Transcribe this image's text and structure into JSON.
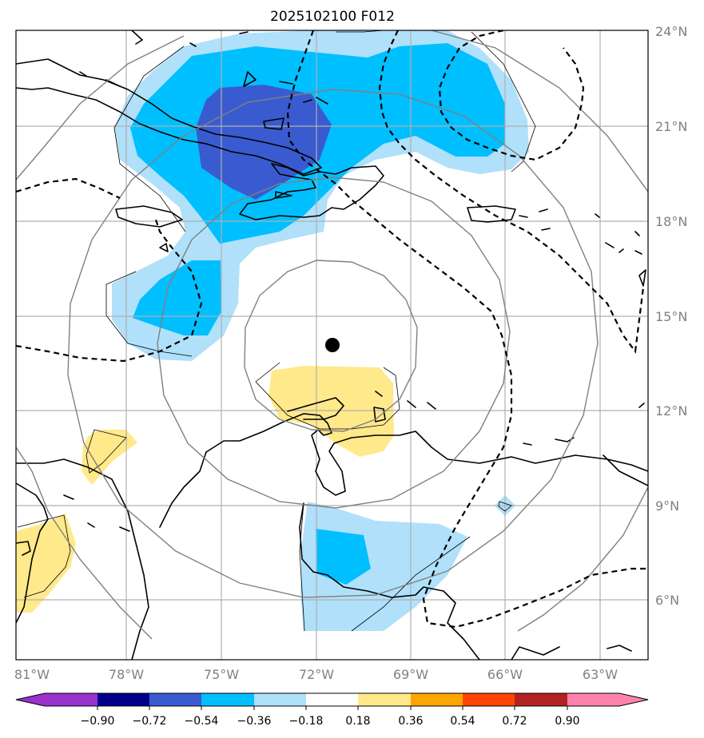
{
  "title": "2025102100 F012",
  "lat_labels": [
    "24°N",
    "21°N",
    "18°N",
    "15°N",
    "12°N",
    "9°N",
    "6°N"
  ],
  "lon_labels": [
    "81°W",
    "78°W",
    "75°W",
    "72°W",
    "69°W",
    "66°W",
    "63°W"
  ],
  "colorbar": {
    "ticks": [
      "−0.90",
      "−0.72",
      "−0.54",
      "−0.36",
      "−0.18",
      "0.18",
      "0.36",
      "0.54",
      "0.72",
      "0.90"
    ],
    "colors": {
      "under": "#9932cc",
      "c1": "#00008b",
      "c2": "#3a5bcf",
      "c3": "#00bfff",
      "c4": "#b0e0fa",
      "c5": "#ffffff",
      "c6": "#ffe98a",
      "c7": "#ffa500",
      "c8": "#ff4500",
      "c9": "#b22222",
      "over": "#ff82ab"
    }
  },
  "fill_colors": {
    "light_blue": "#b0e0fa",
    "cyan": "#00bfff",
    "royal_blue": "#3a5bcf",
    "yellow": "#ffe98a"
  },
  "storm_center": {
    "lat": 14.1,
    "lon": -71.5
  }
}
